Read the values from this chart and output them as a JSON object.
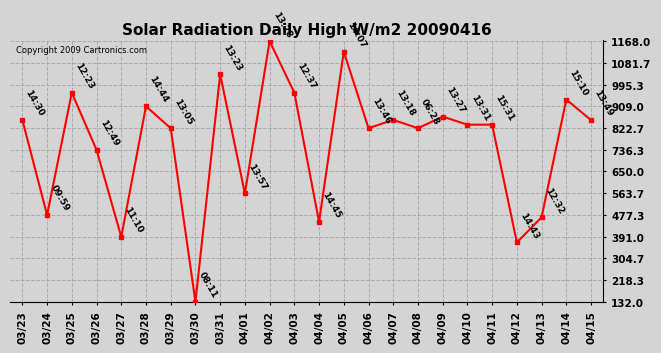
{
  "title": "Solar Radiation Daily High W/m2 20090416",
  "copyright": "Copyright 2009 Cartronics.com",
  "dates": [
    "03/23",
    "03/24",
    "03/25",
    "03/26",
    "03/27",
    "03/28",
    "03/29",
    "03/30",
    "03/31",
    "04/01",
    "04/02",
    "04/03",
    "04/04",
    "04/05",
    "04/06",
    "04/07",
    "04/08",
    "04/09",
    "04/10",
    "04/11",
    "04/12",
    "04/13",
    "04/14",
    "04/15"
  ],
  "values": [
    855,
    477,
    963,
    736,
    390,
    909,
    822,
    132,
    1036,
    563,
    1168,
    963,
    450,
    1126,
    822,
    855,
    822,
    868,
    836,
    836,
    368,
    468,
    936,
    854
  ],
  "labels": [
    "14:30",
    "09:59",
    "12:23",
    "12:49",
    "11:10",
    "14:44",
    "13:05",
    "08:11",
    "13:23",
    "13:57",
    "13:28",
    "12:37",
    "14:45",
    "14:07",
    "13:46",
    "13:18",
    "06:28",
    "13:27",
    "13:31",
    "15:31",
    "14:43",
    "12:32",
    "15:10",
    "13:49"
  ],
  "ymin": 132.0,
  "ymax": 1168.0,
  "yticks": [
    132.0,
    218.3,
    304.7,
    391.0,
    477.3,
    563.7,
    650.0,
    736.3,
    822.7,
    909.0,
    995.3,
    1081.7,
    1168.0
  ],
  "line_color": "red",
  "marker_color": "red",
  "bg_color": "#d4d4d4",
  "plot_bg": "#d4d4d4",
  "grid_color": "#aaaaaa",
  "title_fontsize": 11,
  "label_fontsize": 6.5,
  "tick_fontsize": 7.5,
  "copyright_fontsize": 6
}
